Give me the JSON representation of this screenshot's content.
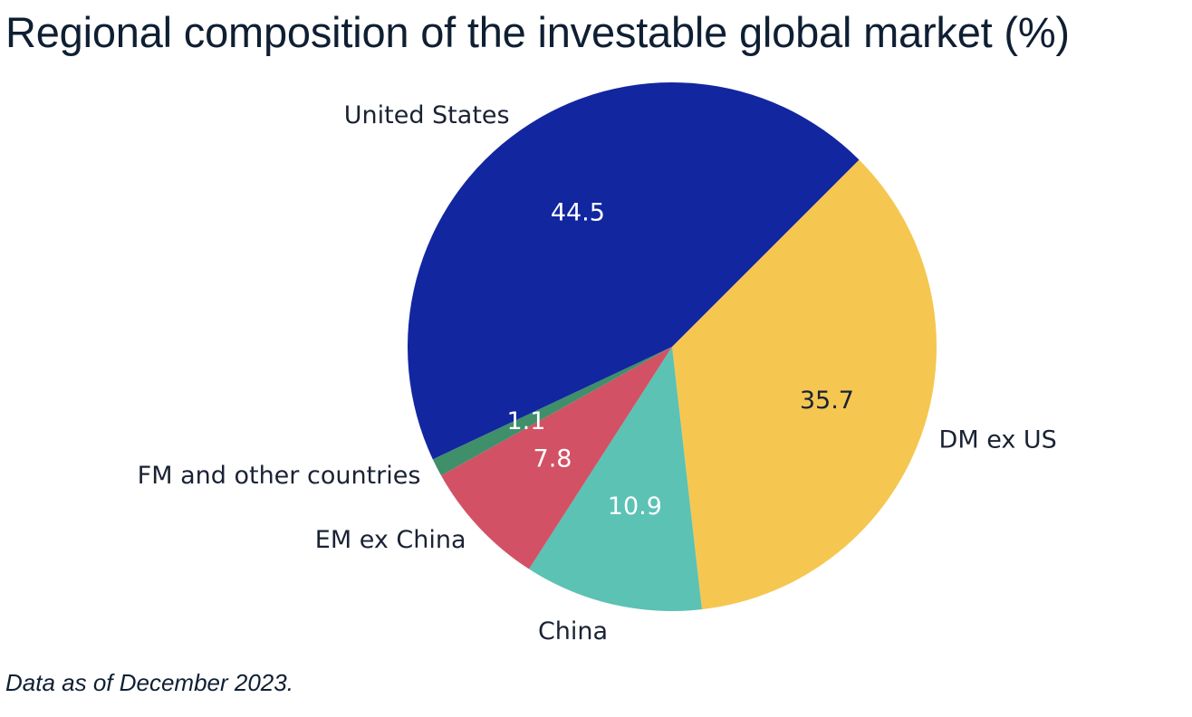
{
  "title": "Regional composition of the investable global market (%)",
  "footnote": "Data as of December 2023.",
  "chart_data": {
    "type": "pie",
    "title": "Regional composition of the investable global market (%)",
    "start_angle_deg": 45,
    "direction": "clockwise",
    "slices": [
      {
        "label": "DM ex US",
        "value": 35.7,
        "color": "#F5C751",
        "value_text_color": "#1a2233"
      },
      {
        "label": "China",
        "value": 10.9,
        "color": "#5BC2B4",
        "value_text_color": "#ffffff"
      },
      {
        "label": "EM ex China",
        "value": 7.8,
        "color": "#D35164",
        "value_text_color": "#ffffff"
      },
      {
        "label": "FM and other countries",
        "value": 1.1,
        "color": "#3F8F6A",
        "value_text_color": "#ffffff"
      },
      {
        "label": "United States",
        "value": 44.5,
        "color": "#1226A0",
        "value_text_color": "#ffffff"
      }
    ]
  }
}
